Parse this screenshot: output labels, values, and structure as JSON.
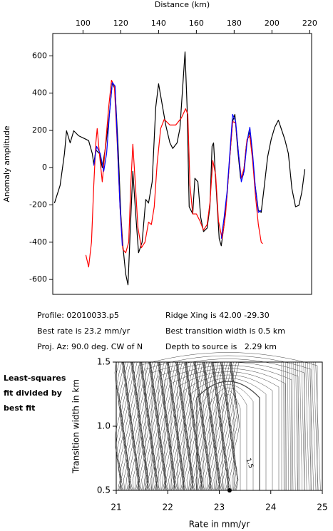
{
  "chart_data": [
    {
      "type": "line",
      "x_label": "Distance (km)",
      "y_label": "Anomaly amplitude",
      "xlim": [
        84,
        221
      ],
      "ylim": [
        -680,
        720
      ],
      "xticks": [
        100,
        120,
        140,
        160,
        180,
        200,
        220
      ],
      "yticks": [
        -600,
        -400,
        -200,
        0,
        200,
        400,
        600
      ],
      "series": [
        {
          "color": "#000000",
          "x": [
            84.9,
            87.9,
            90.2,
            91.3,
            93.2,
            95.1,
            97.7,
            100.8,
            103.0,
            104.9,
            105.7,
            106.8,
            108.7,
            110.2,
            111.7,
            113.6,
            115.5,
            117.0,
            118.5,
            120.0,
            121.1,
            122.6,
            123.8,
            124.9,
            126.4,
            127.9,
            129.4,
            131.3,
            133.2,
            134.7,
            136.6,
            138.5,
            140.0,
            141.5,
            143.8,
            146.0,
            147.5,
            149.8,
            151.3,
            152.8,
            154.0,
            155.1,
            156.2,
            158.1,
            159.2,
            160.8,
            162.3,
            163.8,
            165.7,
            167.2,
            168.3,
            169.1,
            170.6,
            172.1,
            173.2,
            174.7,
            176.2,
            177.7,
            179.2,
            180.4,
            181.9,
            183.4,
            184.9,
            186.4,
            187.9,
            189.4,
            190.9,
            192.8,
            194.3,
            195.8,
            197.7,
            199.6,
            201.5,
            203.4,
            204.9,
            206.8,
            208.7,
            210.6,
            212.5,
            214.3,
            215.8,
            217.4
          ],
          "values": [
            -190,
            -95,
            76,
            198,
            133,
            198,
            171,
            156,
            145,
            76,
            19,
            95,
            76,
            0,
            95,
            248,
            457,
            419,
            133,
            -248,
            -419,
            -571,
            -629,
            -362,
            -19,
            -248,
            -457,
            -400,
            -171,
            -190,
            -76,
            324,
            450,
            362,
            229,
            133,
            103,
            133,
            210,
            438,
            621,
            324,
            -210,
            -248,
            -57,
            -76,
            -267,
            -343,
            -324,
            -210,
            114,
            133,
            -133,
            -381,
            -419,
            -305,
            -152,
            57,
            248,
            286,
            95,
            -57,
            -38,
            114,
            198,
            95,
            -76,
            -229,
            -240,
            -114,
            57,
            152,
            217,
            255,
            210,
            152,
            76,
            -114,
            -210,
            -202,
            -133,
            -8
          ]
        },
        {
          "color": "#ff0000",
          "x": [
            101.5,
            103.0,
            104.5,
            105.7,
            106.8,
            107.5,
            108.7,
            110.2,
            111.7,
            113.6,
            115.1,
            116.6,
            118.1,
            119.6,
            121.1,
            122.6,
            124.2,
            125.3,
            126.4,
            127.5,
            129.1,
            130.9,
            132.8,
            134.7,
            136.2,
            137.7,
            139.2,
            141.1,
            143.0,
            146.0,
            149.1,
            152.1,
            154.3,
            155.5,
            156.6,
            158.1,
            160.0,
            161.9,
            163.8,
            165.7,
            167.2,
            168.7,
            170.2,
            171.7,
            173.6,
            175.5,
            177.4,
            179.2,
            180.8,
            182.3,
            183.8,
            185.3,
            186.8,
            188.3,
            189.8,
            191.3,
            192.8,
            194.3,
            195.1
          ],
          "values": [
            -469,
            -533,
            -400,
            -95,
            133,
            210,
            76,
            -76,
            95,
            324,
            469,
            438,
            133,
            -210,
            -438,
            -457,
            -400,
            -95,
            126,
            -57,
            -324,
            -430,
            -400,
            -293,
            -305,
            -210,
            19,
            210,
            259,
            229,
            229,
            267,
            316,
            286,
            -95,
            -248,
            -248,
            -286,
            -335,
            -305,
            -190,
            38,
            -38,
            -286,
            -381,
            -248,
            19,
            248,
            240,
            76,
            -57,
            0,
            152,
            171,
            38,
            -152,
            -305,
            -400,
            -408
          ]
        },
        {
          "color": "#0000ff",
          "x": [
            105.7,
            107.2,
            109.1,
            111.0,
            112.5,
            114.0,
            115.5,
            117.0,
            118.1,
            119.6,
            120.8,
            null,
            173.2,
            174.7,
            176.2,
            177.7,
            179.2,
            180.8,
            182.3,
            183.8,
            185.3,
            186.8,
            188.3,
            189.8,
            191.3,
            192.8,
            194.3
          ],
          "values": [
            11,
            114,
            76,
            -19,
            76,
            286,
            457,
            438,
            152,
            -210,
            -419,
            null,
            -381,
            -267,
            -133,
            76,
            286,
            248,
            76,
            -76,
            -19,
            133,
            217,
            76,
            -114,
            -240,
            -229
          ]
        }
      ]
    },
    {
      "type": "contour",
      "x_label": "Rate in mm/yr",
      "y_label": "Transition width in km",
      "xlim": [
        21,
        25
      ],
      "ylim": [
        0.5,
        1.5
      ],
      "xticks": [
        21,
        22,
        23,
        24,
        25
      ],
      "yticks": [
        0.5,
        {
          "value": 1,
          "label": "1.0"
        },
        1.5
      ],
      "contour_label": "1.5",
      "best_point": {
        "x": 23.2,
        "y": 0.5
      }
    }
  ],
  "info": {
    "profile": "Profile: 02010033.p5",
    "best_rate": "Best rate is 23.2 mm/yr",
    "proj_az": "Proj. Az: 90.0 deg. CW of N",
    "ridge_xing": "Ridge Xing is 42.00 -29.30",
    "best_width": "Best transition width is 0.5 km",
    "depth": "Depth to source is   2.29 km"
  },
  "side_note": [
    "Least-squares",
    "fit divided by",
    "best fit"
  ]
}
